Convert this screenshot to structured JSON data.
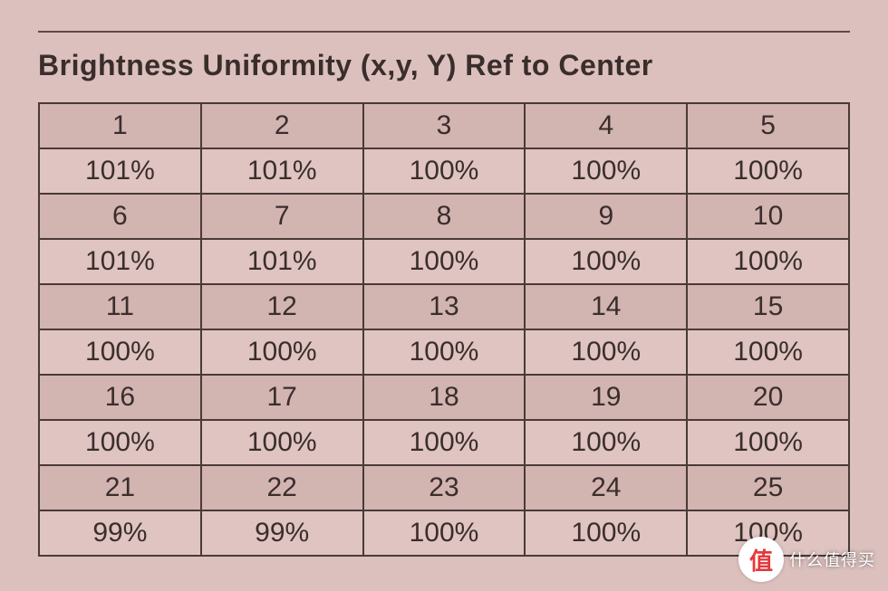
{
  "title": "Brightness Uniformity (x,y, Y) Ref to Center",
  "table": {
    "type": "table",
    "columns": 5,
    "background_color": "#dcc0bd",
    "border_color": "#4a3a38",
    "index_row_bg": "#d2b4b1",
    "value_row_bg": "#dfc4c1",
    "text_color": "#3a2e2c",
    "cell_fontsize": 30,
    "rows": [
      {
        "kind": "index",
        "cells": [
          "1",
          "2",
          "3",
          "4",
          "5"
        ]
      },
      {
        "kind": "value",
        "cells": [
          "101%",
          "101%",
          "100%",
          "100%",
          "100%"
        ]
      },
      {
        "kind": "index",
        "cells": [
          "6",
          "7",
          "8",
          "9",
          "10"
        ]
      },
      {
        "kind": "value",
        "cells": [
          "101%",
          "101%",
          "100%",
          "100%",
          "100%"
        ]
      },
      {
        "kind": "index",
        "cells": [
          "11",
          "12",
          "13",
          "14",
          "15"
        ]
      },
      {
        "kind": "value",
        "cells": [
          "100%",
          "100%",
          "100%",
          "100%",
          "100%"
        ]
      },
      {
        "kind": "index",
        "cells": [
          "16",
          "17",
          "18",
          "19",
          "20"
        ]
      },
      {
        "kind": "value",
        "cells": [
          "100%",
          "100%",
          "100%",
          "100%",
          "100%"
        ]
      },
      {
        "kind": "index",
        "cells": [
          "21",
          "22",
          "23",
          "24",
          "25"
        ]
      },
      {
        "kind": "value",
        "cells": [
          "99%",
          "99%",
          "100%",
          "100%",
          "100%"
        ]
      }
    ]
  },
  "watermark": {
    "badge": "值",
    "text": "什么值得买"
  }
}
